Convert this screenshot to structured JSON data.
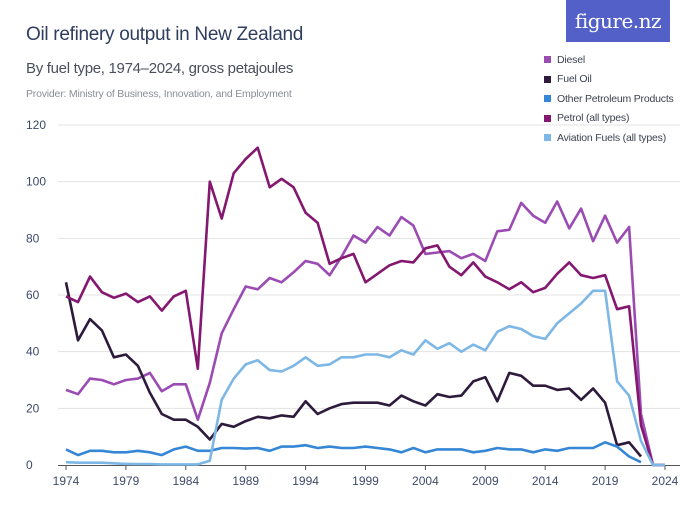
{
  "header": {
    "title": "Oil refinery output in New Zealand",
    "subtitle": "By fuel type, 1974–2024, gross petajoules",
    "provider": "Provider: Ministry of Business, Innovation, and Employment",
    "logo": "figure.nz"
  },
  "chart_data": {
    "type": "line",
    "title": "Oil refinery output in New Zealand",
    "subtitle": "By fuel type, 1974–2024, gross petajoules",
    "xlabel": "",
    "ylabel": "",
    "xlim": [
      1974,
      2024
    ],
    "ylim": [
      0,
      120
    ],
    "grid": true,
    "legend_position": "top-right",
    "x_ticks": [
      1974,
      1979,
      1984,
      1989,
      1994,
      1999,
      2004,
      2009,
      2014,
      2019,
      2024
    ],
    "y_ticks": [
      0,
      20,
      40,
      60,
      80,
      100,
      120
    ],
    "x": [
      1974,
      1975,
      1976,
      1977,
      1978,
      1979,
      1980,
      1981,
      1982,
      1983,
      1984,
      1985,
      1986,
      1987,
      1988,
      1989,
      1990,
      1991,
      1992,
      1993,
      1994,
      1995,
      1996,
      1997,
      1998,
      1999,
      2000,
      2001,
      2002,
      2003,
      2004,
      2005,
      2006,
      2007,
      2008,
      2009,
      2010,
      2011,
      2012,
      2013,
      2014,
      2015,
      2016,
      2017,
      2018,
      2019,
      2020,
      2021,
      2022,
      2023,
      2024
    ],
    "series": [
      {
        "name": "Diesel",
        "color": "#9b4cb2",
        "values": [
          26.5,
          25,
          30.5,
          30,
          28.5,
          30,
          30.5,
          32.5,
          26,
          28.5,
          28.5,
          16,
          29,
          46.5,
          55,
          63,
          62,
          66,
          64.5,
          68,
          72,
          71,
          67,
          73.5,
          81,
          78.5,
          84,
          81,
          87.5,
          84.5,
          74.5,
          75,
          75.5,
          73,
          74.5,
          72,
          82.5,
          83,
          92.5,
          88,
          85.5,
          93,
          83.5,
          90.5,
          79,
          88,
          78.5,
          84,
          18,
          0,
          0
        ]
      },
      {
        "name": "Fuel Oil",
        "color": "#2e1b3c",
        "values": [
          64.5,
          44,
          51.5,
          47.5,
          38,
          39,
          35,
          25.5,
          18,
          16,
          16,
          13.5,
          9,
          14.5,
          13.5,
          15.5,
          17,
          16.5,
          17.5,
          17,
          22.5,
          18,
          20,
          21.5,
          22,
          22,
          22,
          21,
          24.5,
          22.5,
          21,
          25,
          24,
          24.5,
          29.5,
          31,
          22.5,
          32.5,
          31.5,
          28,
          28,
          26.5,
          27,
          23,
          27,
          22,
          7,
          8,
          3,
          null,
          null
        ]
      },
      {
        "name": "Other Petroleum Products",
        "color": "#3587d5",
        "values": [
          5.5,
          3.5,
          5,
          5,
          4.5,
          4.5,
          5,
          4.5,
          3.5,
          5.5,
          6.5,
          5,
          5,
          6,
          6,
          5.8,
          6,
          5,
          6.5,
          6.5,
          7,
          6,
          6.5,
          6,
          6,
          6.5,
          6,
          5.5,
          4.5,
          6,
          4.5,
          5.5,
          5.5,
          5.5,
          4.5,
          5,
          6,
          5.5,
          5.5,
          4.5,
          5.5,
          5,
          6,
          6,
          6,
          8,
          6.5,
          3,
          1,
          null,
          null
        ]
      },
      {
        "name": "Petrol (all types)",
        "color": "#84176f",
        "values": [
          59.5,
          57.5,
          66.5,
          61,
          59,
          60.5,
          57.5,
          59.5,
          54.5,
          59.5,
          61.5,
          34,
          100,
          87,
          103,
          108,
          112,
          98,
          101,
          98,
          89,
          85.5,
          71,
          73,
          74.5,
          64.5,
          67.5,
          70.5,
          72,
          71.5,
          76.5,
          77.5,
          70,
          67,
          71.5,
          66.5,
          64.5,
          62,
          64.5,
          61,
          62.5,
          67.5,
          71.5,
          67,
          66,
          67,
          55,
          56,
          14,
          0,
          0
        ]
      },
      {
        "name": "Aviation Fuels (all types)",
        "color": "#7db7e6",
        "values": [
          1,
          0.8,
          0.8,
          0.8,
          0.6,
          0.4,
          0.3,
          0.3,
          0.2,
          0.2,
          0.2,
          0.2,
          1.5,
          23,
          30.5,
          35.5,
          37,
          33.5,
          33,
          35,
          38,
          35,
          35.5,
          38,
          38,
          39,
          39,
          38,
          40.5,
          39,
          44,
          41,
          43,
          40,
          42.5,
          40.5,
          47,
          49,
          48,
          45.5,
          44.5,
          50,
          53.5,
          57,
          61.5,
          61.5,
          29.5,
          24.5,
          8.5,
          0,
          0
        ]
      }
    ]
  }
}
